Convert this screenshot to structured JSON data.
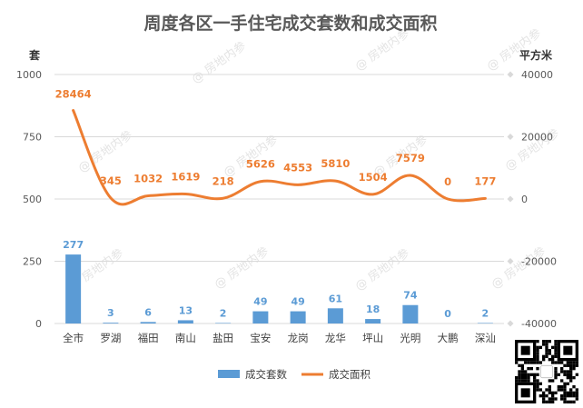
{
  "chart_data": {
    "type": "bar+line",
    "title": "周度各区一手住宅成交套数和成交面积",
    "left_axis": {
      "unit": "套",
      "ticks": [
        "0",
        "250",
        "500",
        "750",
        "1000"
      ],
      "range": [
        0,
        1000
      ]
    },
    "right_axis": {
      "unit": "平方米",
      "ticks": [
        "-40000",
        "-20000",
        "0",
        "20000",
        "40000"
      ],
      "range": [
        -40000,
        40000
      ]
    },
    "categories": [
      "全市",
      "罗湖",
      "福田",
      "南山",
      "盐田",
      "宝安",
      "龙岗",
      "龙华",
      "坪山",
      "光明",
      "大鹏",
      "深汕"
    ],
    "series": [
      {
        "name": "成交套数",
        "type": "bar",
        "axis": "left",
        "values": [
          277,
          3,
          6,
          13,
          2,
          49,
          49,
          61,
          18,
          74,
          0,
          2
        ],
        "labels": [
          "277",
          "3",
          "6",
          "13",
          "2",
          "49",
          "49",
          "61",
          "18",
          "74",
          "0",
          "2"
        ],
        "color": "#5b9bd5"
      },
      {
        "name": "成交面积",
        "type": "line",
        "axis": "right",
        "values": [
          28464,
          345,
          1032,
          1619,
          218,
          5626,
          4553,
          5810,
          1504,
          7579,
          0,
          177
        ],
        "labels": [
          "28464",
          "345",
          "1032",
          "1619",
          "218",
          "5626",
          "4553",
          "5810",
          "1504",
          "7579",
          "0",
          "177"
        ],
        "color": "#ed7d31"
      }
    ],
    "grid": true,
    "legend": "bottom"
  },
  "watermark": "@ 房地内参",
  "qr_icon": "qr-code-icon"
}
